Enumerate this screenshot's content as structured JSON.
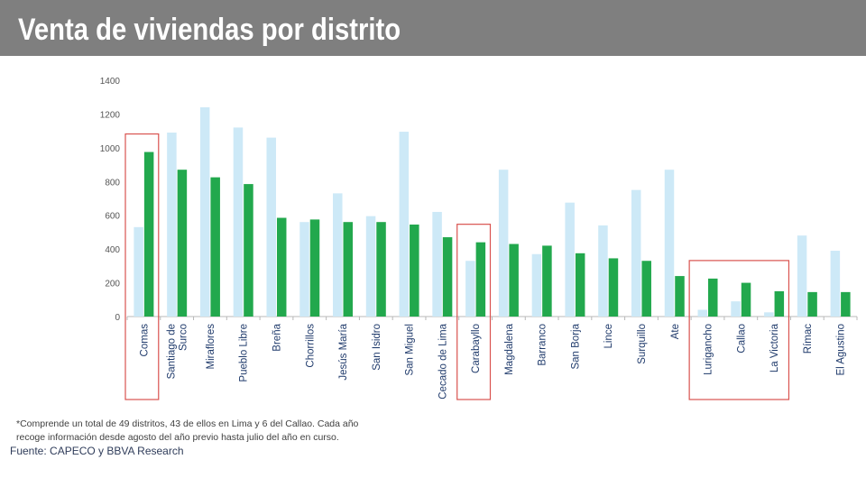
{
  "title": "Venta de viviendas por distrito",
  "colors": {
    "header_bg": "#7f7f7f",
    "series_light": "#cde9f7",
    "series_dark": "#22a84d",
    "highlight_box": "#d9534f",
    "axis_text": "#555555"
  },
  "chart_data": {
    "type": "bar",
    "categories": [
      "Comas",
      "Santiago de Surco",
      "Miraflores",
      "Pueblo Libre",
      "Breña",
      "Chorrillos",
      "Jesús María",
      "San Isidro",
      "San Miguel",
      "Cecado de Lima",
      "Carabayllo",
      "Magdalena",
      "Barranco",
      "San Borja",
      "Lince",
      "Surquillo",
      "Ate",
      "Lurigancho",
      "Callao",
      "La Victoria",
      "Rímac",
      "El Agustino"
    ],
    "category_lines": [
      [
        "Comas"
      ],
      [
        "Santiago de",
        "Surco"
      ],
      [
        "Miraflores"
      ],
      [
        "Pueblo Libre"
      ],
      [
        "Breña"
      ],
      [
        "Chorrillos"
      ],
      [
        "Jesús María"
      ],
      [
        "San Isidro"
      ],
      [
        "San Miguel"
      ],
      [
        "Cecado de Lima"
      ],
      [
        "Carabayllo"
      ],
      [
        "Magdalena"
      ],
      [
        "Barranco"
      ],
      [
        "San Borja"
      ],
      [
        "Lince"
      ],
      [
        "Surquillo"
      ],
      [
        "Ate"
      ],
      [
        "Lurigancho"
      ],
      [
        "Callao"
      ],
      [
        "La Victoria"
      ],
      [
        "Rímac"
      ],
      [
        "El Agustino"
      ]
    ],
    "series": [
      {
        "values": [
          530,
          1090,
          1240,
          1120,
          1060,
          560,
          730,
          595,
          1095,
          620,
          330,
          870,
          370,
          675,
          540,
          750,
          870,
          40,
          90,
          25,
          480,
          390
        ]
      },
      {
        "values": [
          975,
          870,
          825,
          785,
          585,
          575,
          560,
          560,
          545,
          470,
          440,
          430,
          420,
          375,
          345,
          330,
          240,
          225,
          200,
          150,
          145,
          145
        ]
      }
    ],
    "yticks": [
      0,
      200,
      400,
      600,
      800,
      1000,
      1200,
      1400
    ],
    "ylim": [
      0,
      1400
    ],
    "highlight_groups": [
      [
        "Comas"
      ],
      [
        "Carabayllo"
      ],
      [
        "Lurigancho",
        "Callao",
        "La Victoria"
      ]
    ],
    "grid": false
  },
  "footnote": {
    "line1": "*Comprende un total de 49 distritos, 43 de ellos en Lima y 6 del Callao. Cada año",
    "line2": "recoge información desde agosto del año previo hasta julio del año en curso."
  },
  "source": "Fuente:  CAPECO y BBVA Research"
}
